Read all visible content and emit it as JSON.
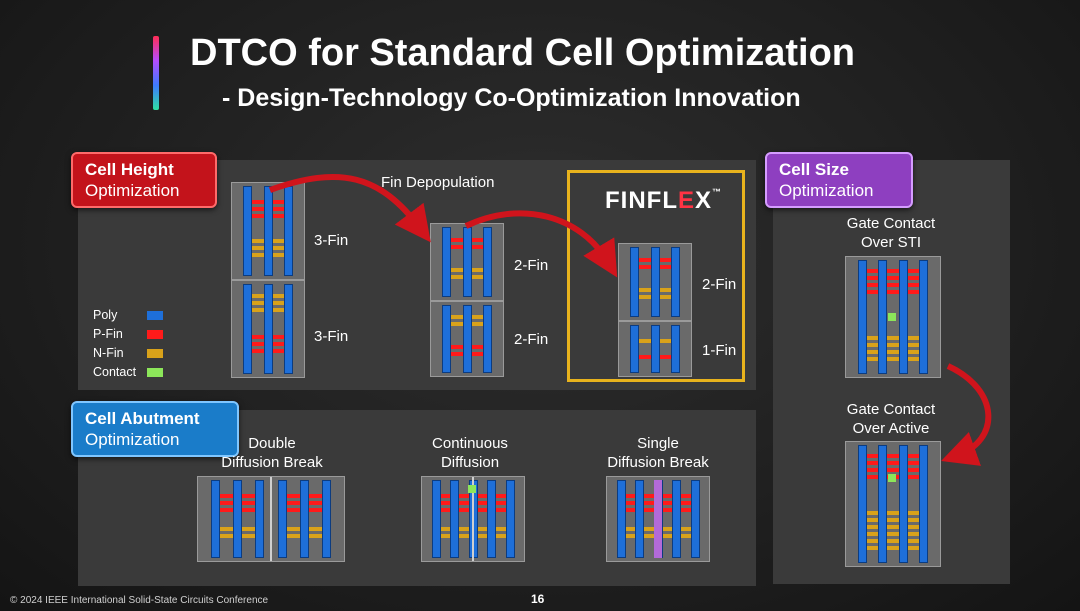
{
  "title": "DTCO for Standard Cell Optimization",
  "subtitle": "- Design-Technology Co-Optimization Innovation",
  "cell_height": {
    "badge_title": "Cell Height",
    "badge_sub": "Optimization",
    "fin_depopulation_label": "Fin Depopulation",
    "cell_3fin_top": "3-Fin",
    "cell_3fin_bottom": "3-Fin",
    "cell_2fin_top": "2-Fin",
    "cell_2fin_bottom": "2-Fin",
    "finflex_logo": "FINFLEX",
    "finflex_logo_main": "FINFL",
    "finflex_logo_e": "E",
    "finflex_logo_x": "X",
    "finflex_tm": "™",
    "finflex_2fin": "2-Fin",
    "finflex_1fin": "1-Fin"
  },
  "legend": {
    "items": [
      {
        "label": "Poly",
        "color": "#1e6fd9"
      },
      {
        "label": "P-Fin",
        "color": "#ff1a1a"
      },
      {
        "label": "N-Fin",
        "color": "#d9a21a"
      },
      {
        "label": "Contact",
        "color": "#8ce65a"
      }
    ]
  },
  "cell_abutment": {
    "badge_title": "Cell Abutment",
    "badge_sub": "Optimization",
    "double_line1": "Double",
    "double_line2": "Diffusion Break",
    "continuous_line1": "Continuous",
    "continuous_line2": "Diffusion",
    "single_line1": "Single",
    "single_line2": "Diffusion Break"
  },
  "cell_size": {
    "badge_title": "Cell Size",
    "badge_sub": "Optimization",
    "sti_line1": "Gate Contact",
    "sti_line2": "Over STI",
    "active_line1": "Gate Contact",
    "active_line2": "Over Active"
  },
  "colors": {
    "poly": "#1e6fd9",
    "pfin": "#ff1a1a",
    "nfin": "#d9a21a",
    "contact": "#8ce65a",
    "break": "#b36ad9",
    "finflex_border": "#e8b31d"
  },
  "footer": "© 2024 IEEE International Solid-State Circuits Conference",
  "page_number": "16"
}
